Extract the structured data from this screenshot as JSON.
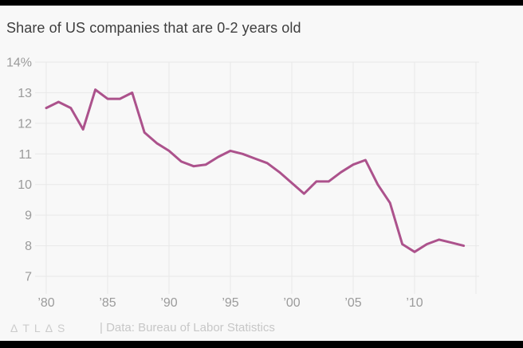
{
  "title": "Share of US companies that are 0-2 years old",
  "footer": {
    "logo": "ΔTLΔS",
    "source": "| Data: Bureau of Labor Statistics"
  },
  "colors": {
    "background": "#f8f8f8",
    "grid": "#e8e8e8",
    "line": "#ac528c",
    "axis_label": "#9b9b9b",
    "title_text": "#3e3e3e",
    "footer_text": "#c7c7c7",
    "frame_bars": "#000000"
  },
  "chart_data": {
    "type": "line",
    "title": "Share of US companies that are 0-2 years old",
    "xlabel": "",
    "ylabel": "",
    "grid": true,
    "legend": false,
    "xlim": [
      1980,
      2015
    ],
    "ylim": [
      7,
      14
    ],
    "x": [
      1980,
      1981,
      1982,
      1983,
      1984,
      1985,
      1986,
      1987,
      1988,
      1989,
      1990,
      1991,
      1992,
      1993,
      1994,
      1995,
      1996,
      1997,
      1998,
      1999,
      2000,
      2001,
      2002,
      2003,
      2004,
      2005,
      2006,
      2007,
      2008,
      2009,
      2010,
      2011,
      2012,
      2013,
      2014
    ],
    "values": [
      12.5,
      12.7,
      12.5,
      11.8,
      13.1,
      12.8,
      12.8,
      13.0,
      11.7,
      11.35,
      11.1,
      10.75,
      10.6,
      10.65,
      10.9,
      11.1,
      11.0,
      10.85,
      10.7,
      10.4,
      10.05,
      9.7,
      10.1,
      10.1,
      10.4,
      10.65,
      10.8,
      10.0,
      9.4,
      8.05,
      7.8,
      8.05,
      8.2,
      8.1,
      8.0
    ],
    "y_tick_values": [
      14,
      13,
      12,
      11,
      10,
      9,
      8,
      7
    ],
    "y_tick_labels": [
      "14%",
      "13",
      "12",
      "11",
      "10",
      "9",
      "8",
      "7"
    ],
    "x_tick_values": [
      1980,
      1985,
      1990,
      1995,
      2000,
      2005,
      2010,
      2015
    ],
    "x_tick_labels": [
      "’80",
      "’85",
      "’90",
      "’95",
      "’00",
      "’05",
      "’10",
      ""
    ]
  }
}
